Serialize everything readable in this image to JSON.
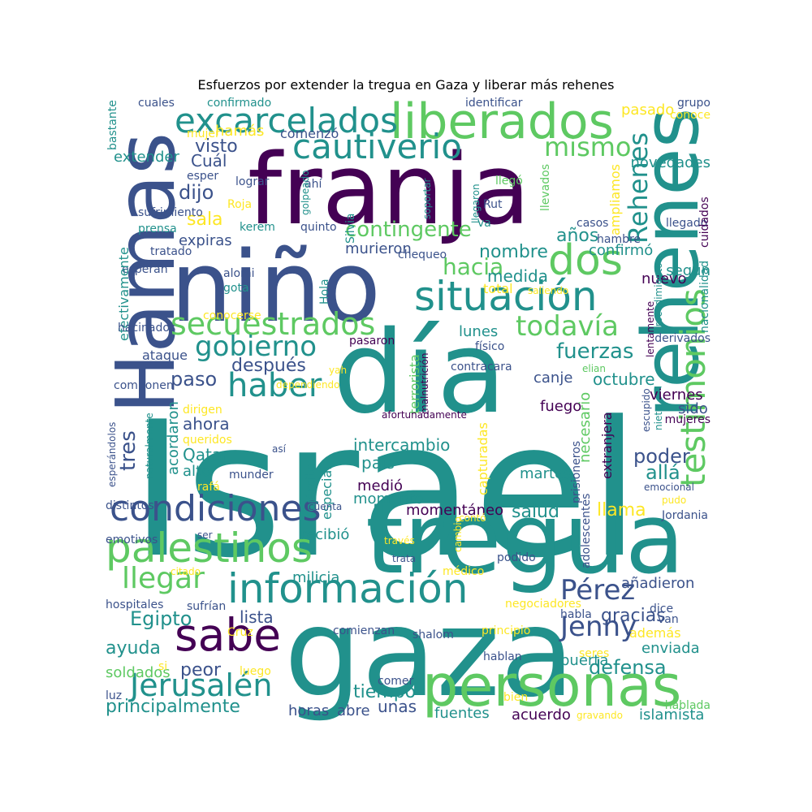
{
  "title": "Esfuerzos por extender la tregua en Gaza y liberar más rehenes",
  "palette": [
    "#440154",
    "#3b528b",
    "#21918c",
    "#5ec962",
    "#fde725"
  ],
  "words": [
    "Israel",
    "gaza",
    "tregua",
    "día",
    "franja",
    "niño",
    "Hamas",
    "rehenes",
    "personas",
    "liberados",
    "dos",
    "situación",
    "información",
    "palestinos",
    "condiciones",
    "sabe",
    "testimonios",
    "excarcelados",
    "cautiverio",
    "secuestrados",
    "gobierno",
    "haber",
    "Jerusalén",
    "llegar",
    "Pérez",
    "Jenny",
    "todavía",
    "Rehenes",
    "mismo",
    "contingente",
    "hacia",
    "fuerzas",
    "después",
    "paso",
    "tres",
    "nombre",
    "medida",
    "años",
    "confirmó",
    "visto",
    "dijo",
    "Cuál",
    "sala",
    "expiras",
    "extender",
    "hamás",
    "comenzó",
    "murieron",
    "Egipto",
    "ayuda",
    "peor",
    "soldados",
    "principalmente",
    "tiempo",
    "horas",
    "abre",
    "unas",
    "fuentes",
    "acuerdo",
    "islamista",
    "defensa",
    "gracias",
    "añadieron",
    "puerta",
    "enviada",
    "además",
    "lista",
    "milicia",
    "recibió",
    "momentáneo",
    "salud",
    "llama",
    "poder",
    "allá",
    "país",
    "intercambio",
    "especial",
    "ejército",
    "medió",
    "momento",
    "Qatar",
    "alto",
    "ahora",
    "acordaron",
    "fuego",
    "canje",
    "octubre",
    "viernes",
    "sido",
    "lunes",
    "nuevo",
    "según",
    "llegado",
    "novedades",
    "ampliamos",
    "pasado",
    "grupo",
    "conoce",
    "bastante",
    "cuales",
    "confirmado",
    "identificar",
    "mujer",
    "esper",
    "lograr",
    "ahí",
    "llegó",
    "Silvia",
    "Rut",
    "va",
    "hambre",
    "casos",
    "cuidados",
    "Roja",
    "kerem",
    "quinto",
    "golpeado",
    "llegaron",
    "soportar",
    "llevados",
    "chequeo",
    "sufrimiento",
    "prensa",
    "tratado",
    "esperan",
    "alomi",
    "gota",
    "Hola",
    "total",
    "saliendo",
    "procedimiento",
    "nacionalidad",
    "efectivamente",
    "conocerse",
    "hacinados",
    "pasaron",
    "terrorista",
    "malnutrición",
    "físico",
    "elian",
    "lentamente",
    "derivados",
    "ataque",
    "contracara",
    "yah",
    "componen",
    "dependiendo",
    "dirigen",
    "afortunadamente",
    "escupido",
    "nieto",
    "mujeres",
    "queridos",
    "así",
    "naturalmente",
    "esperándolos",
    "necesario",
    "extranjera",
    "prisioneros",
    "martes",
    "capturadas",
    "munder",
    "rafá",
    "distintos",
    "cuenta",
    "Jordania",
    "emotivos",
    "ser",
    "contó",
    "cambio",
    "emocional",
    "pudo",
    "través",
    "trata",
    "podido",
    "adolescentes",
    "citado",
    "médico",
    "hospitales",
    "sufrían",
    "negociadores",
    "habla",
    "dice",
    "van",
    "Cruz",
    "comienzan",
    "shalom",
    "principio",
    "seres",
    "luz",
    "si",
    "luego",
    "comer",
    "hablan",
    "bien",
    "hablada",
    "gravando"
  ]
}
